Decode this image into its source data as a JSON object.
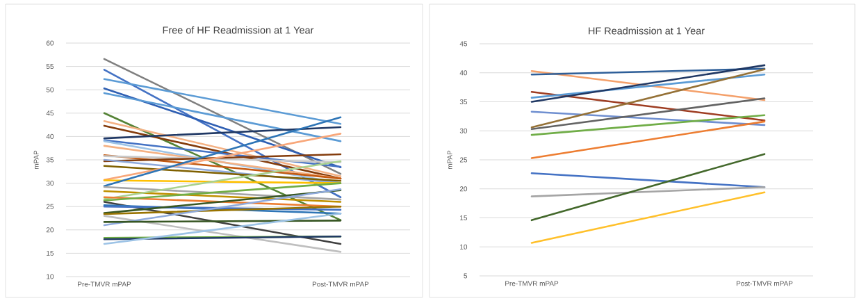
{
  "chart_data": [
    {
      "type": "line",
      "title": "Free of HF Readmission at 1 Year",
      "ylabel": "mPAP",
      "categories": [
        "Pre-TMVR mPAP",
        "Post-TMVR mPAP"
      ],
      "ylim": [
        10,
        60
      ],
      "yticks": [
        10,
        15,
        20,
        25,
        30,
        35,
        40,
        45,
        50,
        55,
        60
      ],
      "grid": "y",
      "series": [
        {
          "color": "#7f7f7f",
          "values": [
            56.6,
            32.0
          ]
        },
        {
          "color": "#4472c4",
          "values": [
            54.3,
            27.0
          ]
        },
        {
          "color": "#5b9bd5",
          "values": [
            52.3,
            42.7
          ]
        },
        {
          "color": "#2f5fb3",
          "values": [
            50.3,
            33.4
          ]
        },
        {
          "color": "#5b9bd5",
          "values": [
            49.3,
            39.0
          ]
        },
        {
          "color": "#548235",
          "values": [
            45.0,
            22.1
          ]
        },
        {
          "color": "#f4b183",
          "values": [
            43.3,
            31.5
          ]
        },
        {
          "color": "#843c0c",
          "values": [
            42.3,
            31.0
          ]
        },
        {
          "color": "#203864",
          "values": [
            39.6,
            42.0
          ]
        },
        {
          "color": "#4472c4",
          "values": [
            39.2,
            33.5
          ]
        },
        {
          "color": "#9dc3e6",
          "values": [
            39.0,
            30.0
          ]
        },
        {
          "color": "#f4b183",
          "values": [
            38.0,
            31.0
          ]
        },
        {
          "color": "#c55a11",
          "values": [
            36.0,
            31.0
          ]
        },
        {
          "color": "#c9c9c9",
          "values": [
            35.8,
            34.5
          ]
        },
        {
          "color": "#843c0c",
          "values": [
            34.7,
            36.2
          ]
        },
        {
          "color": "#8faadc",
          "values": [
            35.0,
            30.0
          ]
        },
        {
          "color": "#7f6000",
          "values": [
            33.7,
            30.5
          ]
        },
        {
          "color": "#f8a77a",
          "values": [
            30.7,
            40.6
          ]
        },
        {
          "color": "#ffc000",
          "values": [
            30.6,
            30.0
          ]
        },
        {
          "color": "#2e75b6",
          "values": [
            29.4,
            44.1
          ]
        },
        {
          "color": "#a5a5a5",
          "values": [
            29.2,
            26.5
          ]
        },
        {
          "color": "#bf9000",
          "values": [
            28.3,
            26.0
          ]
        },
        {
          "color": "#a9d18e",
          "values": [
            26.6,
            34.7
          ]
        },
        {
          "color": "#ed7d31",
          "values": [
            27.0,
            25.0
          ]
        },
        {
          "color": "#70ad47",
          "values": [
            26.3,
            30.0
          ]
        },
        {
          "color": "#404040",
          "values": [
            26.0,
            17.0
          ]
        },
        {
          "color": "#2e75b6",
          "values": [
            25.3,
            23.5
          ]
        },
        {
          "color": "#4472c4",
          "values": [
            25.0,
            24.3
          ]
        },
        {
          "color": "#375623",
          "values": [
            23.6,
            28.5
          ]
        },
        {
          "color": "#997300",
          "values": [
            23.4,
            25.0
          ]
        },
        {
          "color": "#bfbfbf",
          "values": [
            23.0,
            15.3
          ]
        },
        {
          "color": "#8faadc",
          "values": [
            21.0,
            28.7
          ]
        },
        {
          "color": "#375623",
          "values": [
            21.7,
            22.0
          ]
        },
        {
          "color": "#70ad47",
          "values": [
            18.3,
            18.6
          ]
        },
        {
          "color": "#1f3864",
          "values": [
            18.0,
            18.6
          ]
        },
        {
          "color": "#9dc3e6",
          "values": [
            17.0,
            23.5
          ]
        }
      ]
    },
    {
      "type": "line",
      "title": "HF Readmission at 1 Year",
      "ylabel": "mPAP",
      "categories": [
        "Pre-TMVR mPAP",
        "Post-TMVR mPAP"
      ],
      "ylim": [
        5,
        45
      ],
      "yticks": [
        5,
        10,
        15,
        20,
        25,
        30,
        35,
        40,
        45
      ],
      "grid": "y",
      "series": [
        {
          "color": "#f4a06a",
          "values": [
            40.3,
            35.3
          ]
        },
        {
          "color": "#2e5f99",
          "values": [
            39.7,
            40.7
          ]
        },
        {
          "color": "#9e3d22",
          "values": [
            36.7,
            31.8
          ]
        },
        {
          "color": "#5b9bd5",
          "values": [
            35.7,
            39.7
          ]
        },
        {
          "color": "#203864",
          "values": [
            35.0,
            41.3
          ]
        },
        {
          "color": "#6f8fd0",
          "values": [
            33.3,
            31.0
          ]
        },
        {
          "color": "#957136",
          "values": [
            30.6,
            40.6
          ]
        },
        {
          "color": "#636363",
          "values": [
            30.3,
            35.6
          ]
        },
        {
          "color": "#70ad47",
          "values": [
            29.3,
            32.7
          ]
        },
        {
          "color": "#ed7d31",
          "values": [
            25.3,
            31.6
          ]
        },
        {
          "color": "#4472c4",
          "values": [
            22.7,
            20.3
          ]
        },
        {
          "color": "#a5a5a5",
          "values": [
            18.7,
            20.3
          ]
        },
        {
          "color": "#43682b",
          "values": [
            14.6,
            26.0
          ]
        },
        {
          "color": "#ffc02a",
          "values": [
            10.7,
            19.4
          ]
        }
      ]
    }
  ]
}
